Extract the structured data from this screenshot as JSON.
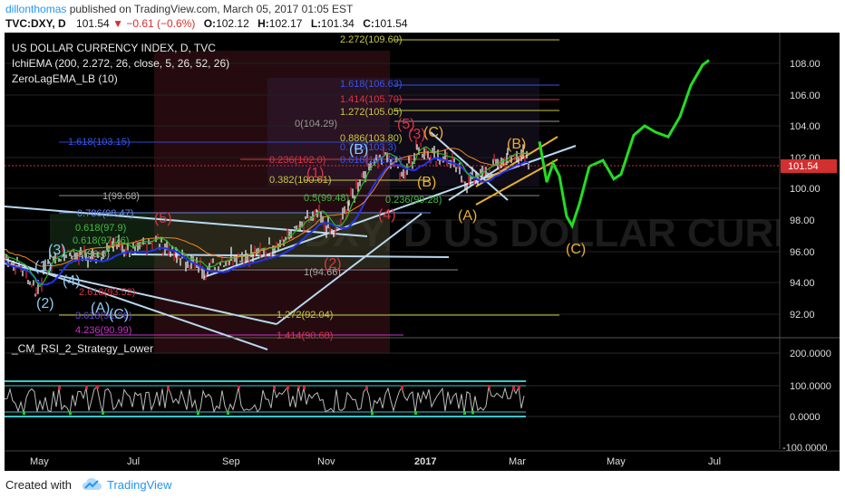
{
  "header": {
    "author": "dillonthomas",
    "published_text": " published on TradingView.com, March 05, 2017 01:05 EST",
    "symbol": "TVC:DXY, D",
    "last": "101.54",
    "change": "−0.61 (−0.6%)",
    "o_label": "O:",
    "o_val": "102.12",
    "h_label": "H:",
    "h_val": "102.17",
    "l_label": "L:",
    "l_val": "101.34",
    "c_label": "C:",
    "c_val": "101.54"
  },
  "indicators": {
    "title": "US DOLLAR CURRENCY INDEX, D, TVC",
    "ichi": "IchiEMA (200, 2.272, 26, close, 5, 26, 52, 26)",
    "zlema": "ZeroLagEMA_LB (10)",
    "rsi_title": "_CM_RSI_2_Strategy_Lower"
  },
  "watermark": "DXY, D  US DOLLAR CURRENCY INDEX",
  "price_axis": {
    "ticks": [
      "108.00",
      "106.00",
      "104.00",
      "102.00",
      "100.00",
      "98.00",
      "96.00",
      "94.00",
      "92.00"
    ],
    "current": "101.54"
  },
  "rsi_axis": {
    "ticks": [
      "200.0000",
      "100.0000",
      "0.0000",
      "-100.0000"
    ]
  },
  "time_axis": {
    "labels": [
      "May",
      "Jul",
      "Sep",
      "Nov",
      "2017",
      "Mar",
      "May",
      "Jul"
    ]
  },
  "fib_right": [
    "2.272(109.60)",
    "1.618(106.63)",
    "1.414(105.70)",
    "1.272(105.05)"
  ],
  "fib_left": [
    "0(104.29)",
    "1.618(103.15)",
    "0.886(103.80)",
    "0.786(103.3)",
    "0.236(102.0)",
    "0.618(101.09)",
    "0.382(100.61)",
    "0.5(99.48)",
    "0.236(99.28)",
    "1(99.68)",
    "0.786(98.47)",
    "0.618(97.9)",
    "0.618(97.76)",
    "0.5(96.6)",
    "1(94.66)",
    "2.618(93.52)",
    "3.618(91.96)",
    "4.236(90.99)",
    "1.272(92.04)",
    "1.414(90.68)"
  ],
  "wave_labels": [
    "(1)",
    "(2)",
    "(3)",
    "(4)",
    "(5)",
    "(A)",
    "(B)",
    "(C)",
    "(B)",
    "(C)",
    "(A)",
    "(B)",
    "(C)",
    "(1)",
    "(2)",
    "(3)",
    "(4)",
    "(5)"
  ],
  "footer": {
    "created_with": "Created with",
    "brand": "TradingView"
  },
  "colors": {
    "background": "#000000",
    "forecast": "#22dd22",
    "price_tag": "#d32f2f",
    "brand": "#2196f3"
  }
}
